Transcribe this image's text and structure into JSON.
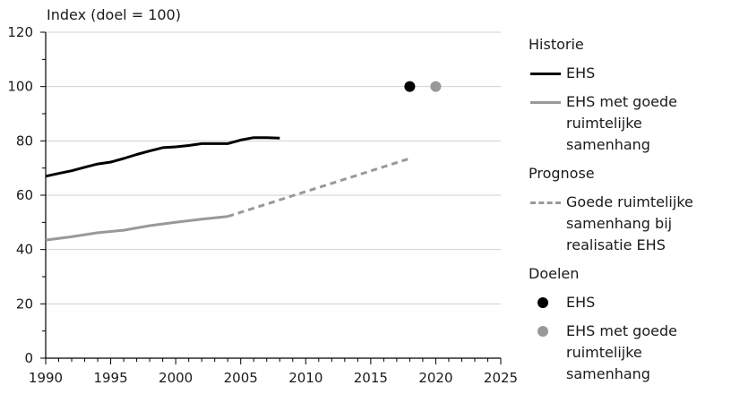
{
  "chart_data": {
    "type": "line",
    "ylabel": "Index (doel = 100)",
    "xlim": [
      1990,
      2025
    ],
    "ylim": [
      0,
      120
    ],
    "xticks": [
      "1990",
      "1995",
      "2000",
      "2005",
      "2010",
      "2015",
      "2020",
      "2025"
    ],
    "yticks": [
      "0",
      "20",
      "40",
      "60",
      "80",
      "100",
      "120"
    ],
    "grid": "horizontal",
    "legend_position": "right",
    "series": [
      {
        "name": "EHS",
        "group": "Historie",
        "style": "solid",
        "color": "#000000",
        "x": [
          1990,
          1991,
          1992,
          1993,
          1994,
          1995,
          1996,
          1997,
          1998,
          1999,
          2000,
          2001,
          2002,
          2003,
          2004,
          2005,
          2006,
          2007,
          2008
        ],
        "y": [
          67,
          68,
          69,
          70.3,
          71.5,
          72.2,
          73.5,
          75,
          76.3,
          77.5,
          77.8,
          78.3,
          79,
          79,
          79,
          80.3,
          81.2,
          81.2,
          81
        ]
      },
      {
        "name": "EHS met goede ruimtelijke samenhang",
        "group": "Historie",
        "style": "solid",
        "color": "#999999",
        "x": [
          1990,
          1992,
          1994,
          1996,
          1998,
          2000,
          2002,
          2004
        ],
        "y": [
          43.5,
          44.7,
          46.2,
          47.1,
          48.8,
          50,
          51.2,
          52.2
        ]
      },
      {
        "name": "Goede ruimtelijke samenhang bij realisatie EHS",
        "group": "Prognose",
        "style": "dashed",
        "color": "#999999",
        "x": [
          2004,
          2018
        ],
        "y": [
          52.2,
          73.5
        ]
      }
    ],
    "targets": [
      {
        "name": "EHS",
        "group": "Doelen",
        "x": 2018,
        "y": 100,
        "color": "#000000"
      },
      {
        "name": "EHS met goede ruimtelijke samenhang",
        "group": "Doelen",
        "x": 2020,
        "y": 100,
        "color": "#999999"
      }
    ]
  },
  "legend": {
    "historie_label": "Historie",
    "ehs_label": "EHS",
    "ehs_samenhang_label": "EHS met goede ruimtelijke samenhang",
    "prognose_label": "Prognose",
    "prognose_item_label": "Goede ruimtelijke samenhang bij realisatie EHS",
    "doelen_label": "Doelen",
    "doel_ehs_label": "EHS",
    "doel_samenhang_label": "EHS met goede ruimtelijke samenhang"
  }
}
